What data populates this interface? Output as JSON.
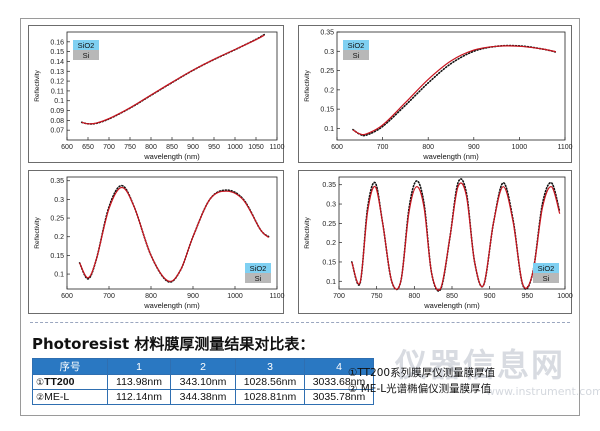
{
  "chart_data": [
    {
      "type": "line",
      "xlabel": "wavelength (nm)",
      "ylabel": "Reflectivity",
      "xlim": [
        600,
        1100
      ],
      "ylim": [
        0.06,
        0.17
      ],
      "xticks": [
        600,
        650,
        700,
        750,
        800,
        850,
        900,
        950,
        1000,
        1050,
        1100
      ],
      "yticks": [
        0.07,
        0.08,
        0.09,
        0.1,
        0.11,
        0.12,
        0.13,
        0.14,
        0.15,
        0.16
      ],
      "layers": [
        "SiO2",
        "Si"
      ],
      "series": [
        {
          "style": "dotted",
          "x": [
            635,
            650,
            670,
            700,
            750,
            800,
            850,
            900,
            950,
            1000,
            1050,
            1070
          ],
          "y": [
            0.078,
            0.0765,
            0.077,
            0.0815,
            0.0925,
            0.1055,
            0.1185,
            0.131,
            0.142,
            0.152,
            0.1625,
            0.1675
          ]
        },
        {
          "style": "solid",
          "x": [
            635,
            650,
            670,
            700,
            750,
            800,
            850,
            900,
            950,
            1000,
            1050,
            1070
          ],
          "y": [
            0.078,
            0.0765,
            0.0772,
            0.0818,
            0.0928,
            0.1058,
            0.1188,
            0.1312,
            0.1422,
            0.1522,
            0.1622,
            0.1668
          ]
        }
      ]
    },
    {
      "type": "line",
      "xlabel": "wavelength (nm)",
      "ylabel": "Reflectivity",
      "xlim": [
        600,
        1100
      ],
      "ylim": [
        0.07,
        0.35
      ],
      "xticks": [
        600,
        700,
        800,
        900,
        1000,
        1100
      ],
      "yticks": [
        0.1,
        0.15,
        0.2,
        0.25,
        0.3,
        0.35
      ],
      "layers": [
        "SiO2",
        "Si"
      ],
      "series": [
        {
          "style": "dotted",
          "x": [
            635,
            650,
            665,
            700,
            750,
            800,
            850,
            900,
            950,
            1000,
            1050,
            1080
          ],
          "y": [
            0.097,
            0.085,
            0.083,
            0.105,
            0.16,
            0.218,
            0.268,
            0.3,
            0.313,
            0.314,
            0.306,
            0.298
          ]
        },
        {
          "style": "solid",
          "x": [
            635,
            650,
            665,
            700,
            750,
            800,
            850,
            900,
            950,
            1000,
            1050,
            1080
          ],
          "y": [
            0.096,
            0.086,
            0.086,
            0.109,
            0.167,
            0.227,
            0.275,
            0.303,
            0.313,
            0.313,
            0.306,
            0.299
          ]
        }
      ]
    },
    {
      "type": "line",
      "xlabel": "wavelength (nm)",
      "ylabel": "Reflectivity",
      "xlim": [
        600,
        1100
      ],
      "ylim": [
        0.06,
        0.36
      ],
      "xticks": [
        600,
        700,
        800,
        900,
        1000,
        1100
      ],
      "yticks": [
        0.1,
        0.15,
        0.2,
        0.25,
        0.3,
        0.35
      ],
      "layers": [
        "SiO2",
        "Si"
      ],
      "series": [
        {
          "style": "dotted",
          "x": [
            630,
            650,
            670,
            700,
            730,
            760,
            800,
            840,
            870,
            900,
            940,
            980,
            1020,
            1060,
            1080
          ],
          "y": [
            0.13,
            0.087,
            0.14,
            0.28,
            0.337,
            0.28,
            0.15,
            0.08,
            0.11,
            0.2,
            0.3,
            0.325,
            0.3,
            0.22,
            0.2
          ]
        },
        {
          "style": "solid",
          "x": [
            630,
            650,
            670,
            700,
            730,
            760,
            800,
            840,
            870,
            900,
            940,
            980,
            1020,
            1060,
            1080
          ],
          "y": [
            0.13,
            0.09,
            0.14,
            0.275,
            0.332,
            0.28,
            0.15,
            0.082,
            0.11,
            0.2,
            0.3,
            0.322,
            0.298,
            0.22,
            0.198
          ]
        }
      ]
    },
    {
      "type": "line",
      "xlabel": "wavelength (nm)",
      "ylabel": "Reflectivity",
      "xlim": [
        700,
        1000
      ],
      "ylim": [
        0.08,
        0.37
      ],
      "xticks": [
        700,
        750,
        800,
        850,
        900,
        950,
        1000
      ],
      "yticks": [
        0.1,
        0.15,
        0.2,
        0.25,
        0.3,
        0.35
      ],
      "layers": [
        "SiO2",
        "Si"
      ],
      "series": [
        {
          "style": "dotted",
          "x": [
            717,
            728,
            738,
            748,
            758,
            770,
            782,
            793,
            803,
            813,
            823,
            835,
            847,
            858,
            869,
            880,
            892,
            905,
            918,
            931,
            944,
            957,
            970,
            982,
            993
          ],
          "y": [
            0.15,
            0.095,
            0.29,
            0.355,
            0.25,
            0.1,
            0.1,
            0.29,
            0.36,
            0.3,
            0.12,
            0.08,
            0.21,
            0.355,
            0.33,
            0.15,
            0.09,
            0.25,
            0.355,
            0.26,
            0.09,
            0.12,
            0.3,
            0.355,
            0.28
          ]
        },
        {
          "style": "solid",
          "x": [
            717,
            728,
            738,
            748,
            758,
            770,
            782,
            793,
            803,
            813,
            823,
            835,
            847,
            858,
            869,
            880,
            892,
            905,
            918,
            931,
            944,
            957,
            970,
            982,
            993
          ],
          "y": [
            0.15,
            0.097,
            0.28,
            0.345,
            0.25,
            0.1,
            0.1,
            0.28,
            0.345,
            0.29,
            0.12,
            0.082,
            0.21,
            0.345,
            0.322,
            0.15,
            0.09,
            0.25,
            0.345,
            0.255,
            0.092,
            0.12,
            0.29,
            0.345,
            0.275
          ]
        }
      ]
    }
  ],
  "heading": "Photoresist 材料膜厚测量结果对比表：",
  "table": {
    "headers": [
      "序号",
      "1",
      "2",
      "3",
      "4"
    ],
    "rows": [
      {
        "mark": "①",
        "label": "TT200",
        "cells": [
          "113.98nm",
          "343.10nm",
          "1028.56nm",
          "3033.68nm"
        ]
      },
      {
        "mark": "②",
        "label": "ME-L",
        "cells": [
          "112.14nm",
          "344.38nm",
          "1028.81nm",
          "3035.78nm"
        ]
      }
    ]
  },
  "legend": [
    "①TT200系列膜厚仪测量膜厚值",
    "② ME-L光谱椭偏仪测量膜厚值"
  ],
  "watermark": {
    "text": "仪器信息网",
    "url": "www.instrument.com.cn"
  },
  "colors": {
    "curve": "#c8141e",
    "dots": "#111111",
    "sio2": "#7fd0f2",
    "si": "#b8b8b8",
    "table_header": "#2a78c2"
  }
}
